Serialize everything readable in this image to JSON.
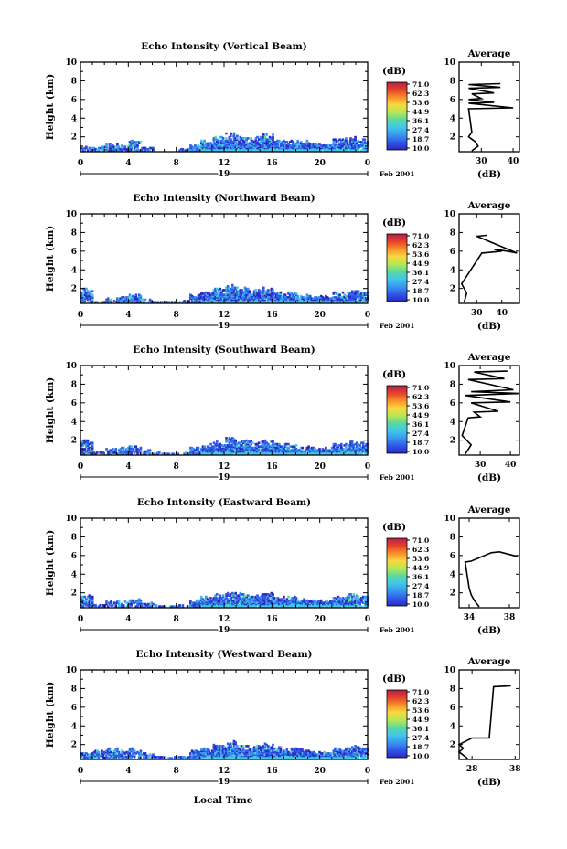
{
  "figure": {
    "bottom_axis_title": "Local Time",
    "date_label": "Feb 2001",
    "day_label": "19",
    "y_label": "Height (km)",
    "colorbar_unit": "(dB)",
    "colorbar_ticks": [
      "71.0",
      "62.3",
      "53.6",
      "44.9",
      "36.1",
      "27.4",
      "18.7",
      "10.0"
    ],
    "colorbar_colors": [
      "#b0204a",
      "#e8402a",
      "#f8902a",
      "#f8d840",
      "#b8e850",
      "#5ad8a0",
      "#40c8e8",
      "#3898f0",
      "#3058e8",
      "#2a28c0"
    ],
    "side_title": "Average",
    "side_xlabel": "(dB)"
  },
  "chart_data": [
    {
      "type": "heatmap",
      "title": "Echo Intensity (Vertical Beam)",
      "ylabel": "Height (km)",
      "xlabel": "Local Time",
      "x_ticks": [
        "0",
        "4",
        "8",
        "12",
        "16",
        "20",
        "0"
      ],
      "y_ticks": [
        "2",
        "4",
        "6",
        "8",
        "10"
      ],
      "xlim": [
        0,
        24
      ],
      "ylim": [
        0.4,
        10
      ],
      "color_range_db": [
        10.0,
        71.0
      ],
      "echo_top_km": [
        0.9,
        0.9,
        1.2,
        1.0,
        1.6,
        0.8,
        0.4,
        0.4,
        0.6,
        1.1,
        1.5,
        1.9,
        2.3,
        2.1,
        2.0,
        2.2,
        1.7,
        1.6,
        1.5,
        1.3,
        1.2,
        1.7,
        1.9,
        1.7
      ],
      "average_profile": {
        "title": "Average",
        "xlabel": "(dB)",
        "x_ticks": [
          "30",
          "40"
        ],
        "xlim": [
          23,
          42
        ],
        "y_ticks": [
          "2",
          "4",
          "6",
          "8",
          "10"
        ],
        "ylim": [
          0.4,
          10
        ],
        "height_km": [
          0.5,
          1.0,
          1.5,
          2.0,
          2.5,
          5.0,
          5.1,
          5.6,
          5.7,
          6.0,
          6.1,
          6.6,
          6.7,
          7.2,
          7.3,
          7.6,
          7.7
        ],
        "db": [
          27,
          29,
          28,
          26,
          27,
          26,
          40,
          26,
          34,
          26,
          30,
          27,
          34,
          26,
          36,
          26,
          36
        ]
      }
    },
    {
      "type": "heatmap",
      "title": "Echo Intensity (Northward Beam)",
      "ylabel": "Height (km)",
      "xlabel": "Local Time",
      "x_ticks": [
        "0",
        "4",
        "8",
        "12",
        "16",
        "20",
        "0"
      ],
      "y_ticks": [
        "2",
        "4",
        "6",
        "8",
        "10"
      ],
      "xlim": [
        0,
        24
      ],
      "ylim": [
        0.4,
        10
      ],
      "color_range_db": [
        10.0,
        71.0
      ],
      "echo_top_km": [
        1.9,
        0.5,
        0.9,
        1.1,
        1.3,
        0.8,
        0.5,
        0.5,
        0.7,
        1.3,
        1.6,
        2.0,
        2.3,
        2.1,
        1.8,
        2.1,
        1.6,
        1.5,
        1.3,
        1.2,
        1.2,
        1.6,
        1.8,
        1.7
      ],
      "average_profile": {
        "title": "Average",
        "xlabel": "(dB)",
        "x_ticks": [
          "30",
          "40"
        ],
        "xlim": [
          23,
          47
        ],
        "y_ticks": [
          "2",
          "4",
          "6",
          "8",
          "10"
        ],
        "ylim": [
          0.4,
          10
        ],
        "height_km": [
          0.5,
          1.5,
          2.5,
          5.8,
          5.9,
          6.0,
          6.2,
          6.0,
          5.8,
          7.6,
          7.7
        ],
        "db": [
          25,
          26,
          24,
          32,
          36,
          40,
          37,
          42,
          46,
          30,
          34
        ]
      }
    },
    {
      "type": "heatmap",
      "title": "Echo Intensity (Southward Beam)",
      "ylabel": "Height (km)",
      "xlabel": "Local Time",
      "x_ticks": [
        "0",
        "4",
        "8",
        "12",
        "16",
        "20",
        "0"
      ],
      "y_ticks": [
        "2",
        "4",
        "6",
        "8",
        "10"
      ],
      "xlim": [
        0,
        24
      ],
      "ylim": [
        0.4,
        10
      ],
      "color_range_db": [
        10.0,
        71.0
      ],
      "echo_top_km": [
        1.9,
        0.7,
        1.2,
        1.2,
        1.3,
        0.9,
        0.6,
        0.5,
        0.6,
        1.2,
        1.5,
        1.8,
        2.2,
        2.0,
        1.8,
        2.0,
        1.6,
        1.5,
        1.3,
        1.2,
        1.2,
        1.6,
        1.8,
        1.7
      ],
      "average_profile": {
        "title": "Average",
        "xlabel": "(dB)",
        "x_ticks": [
          "30",
          "40"
        ],
        "xlim": [
          23,
          43
        ],
        "y_ticks": [
          "2",
          "4",
          "6",
          "8",
          "10"
        ],
        "ylim": [
          0.4,
          10
        ],
        "height_km": [
          0.5,
          1.5,
          2.5,
          4.4,
          4.5,
          5.0,
          5.1,
          6.0,
          6.1,
          6.8,
          7.0,
          7.2,
          7.4,
          8.5,
          8.6,
          9.3,
          9.4
        ],
        "db": [
          25,
          27,
          24,
          26,
          30,
          28,
          36,
          27,
          40,
          25,
          43,
          27,
          41,
          26,
          38,
          28,
          39
        ]
      }
    },
    {
      "type": "heatmap",
      "title": "Echo Intensity (Eastward Beam)",
      "ylabel": "Height (km)",
      "xlabel": "Local Time",
      "x_ticks": [
        "0",
        "4",
        "8",
        "12",
        "16",
        "20",
        "0"
      ],
      "y_ticks": [
        "2",
        "4",
        "6",
        "8",
        "10"
      ],
      "xlim": [
        0,
        24
      ],
      "ylim": [
        0.4,
        10
      ],
      "color_range_db": [
        10.0,
        71.0
      ],
      "echo_top_km": [
        1.7,
        0.7,
        1.0,
        1.0,
        1.3,
        0.9,
        0.6,
        0.5,
        0.6,
        1.2,
        1.5,
        1.8,
        2.0,
        1.9,
        1.7,
        2.0,
        1.6,
        1.5,
        1.3,
        1.2,
        1.2,
        1.5,
        1.8,
        1.7
      ],
      "average_profile": {
        "title": "Average",
        "xlabel": "(dB)",
        "x_ticks": [
          "34",
          "38"
        ],
        "xlim": [
          33,
          39
        ],
        "y_ticks": [
          "2",
          "4",
          "6",
          "8",
          "10"
        ],
        "ylim": [
          0.4,
          10
        ],
        "height_km": [
          0.5,
          1.2,
          1.8,
          2.5,
          5.3,
          5.4,
          6.3,
          6.4,
          6.0,
          5.9
        ],
        "db": [
          35.0,
          34.5,
          34.2,
          34.0,
          33.6,
          34.2,
          36.2,
          37.0,
          38.4,
          38.8
        ]
      }
    },
    {
      "type": "heatmap",
      "title": "Echo Intensity (Westward Beam)",
      "ylabel": "Height (km)",
      "xlabel": "Local Time",
      "x_ticks": [
        "0",
        "4",
        "8",
        "12",
        "16",
        "20",
        "0"
      ],
      "y_ticks": [
        "2",
        "4",
        "6",
        "8",
        "10"
      ],
      "xlim": [
        0,
        24
      ],
      "ylim": [
        0.4,
        10
      ],
      "color_range_db": [
        10.0,
        71.0
      ],
      "echo_top_km": [
        1.1,
        1.3,
        1.5,
        1.3,
        1.5,
        1.0,
        0.7,
        0.6,
        0.7,
        1.3,
        1.6,
        2.0,
        2.3,
        2.0,
        1.8,
        2.1,
        1.7,
        1.6,
        1.4,
        1.3,
        1.2,
        1.6,
        1.8,
        1.7
      ],
      "average_profile": {
        "title": "Average",
        "xlabel": "(dB)",
        "x_ticks": [
          "28",
          "38"
        ],
        "xlim": [
          25,
          39
        ],
        "y_ticks": [
          "2",
          "4",
          "6",
          "8",
          "10"
        ],
        "ylim": [
          0.4,
          10
        ],
        "height_km": [
          0.5,
          1.2,
          1.6,
          2.0,
          2.7,
          2.7,
          8.2,
          8.3
        ],
        "db": [
          27,
          25,
          26,
          25,
          28,
          32,
          33,
          37
        ]
      }
    }
  ]
}
